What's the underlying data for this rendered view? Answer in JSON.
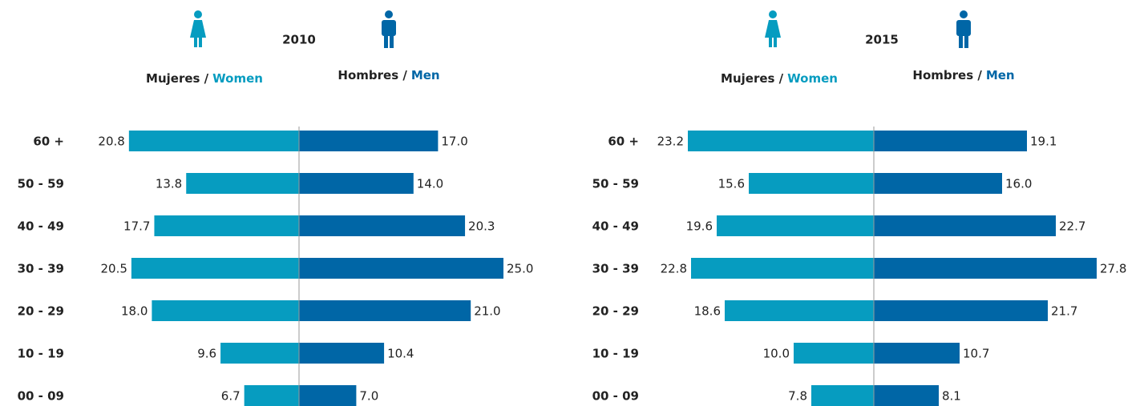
{
  "chart_data": [
    {
      "type": "pyramid",
      "title": "2010",
      "categories": [
        "60 +",
        "50 - 59",
        "40 - 49",
        "30 - 39",
        "20 - 29",
        "10 - 19",
        "00 - 09"
      ],
      "series": [
        {
          "label": "Mujeres /",
          "name": "Women",
          "color": "#069cc0",
          "values": [
            20.8,
            13.8,
            17.7,
            20.5,
            18.0,
            9.6,
            6.7
          ],
          "value_labels": [
            "20.8",
            "13.8",
            "17.7",
            "20.5",
            "18.0",
            "9.6",
            "6.7"
          ]
        },
        {
          "label": "Hombres /",
          "name": "Men",
          "color": "#0066a6",
          "values": [
            17.0,
            14.0,
            20.3,
            25.0,
            21.0,
            10.4,
            7.0
          ],
          "value_labels": [
            "17.0",
            "14.0",
            "20.3",
            "25.0",
            "21.0",
            "10.4",
            "7.0"
          ]
        }
      ]
    },
    {
      "type": "pyramid",
      "title": "2015",
      "categories": [
        "60 +",
        "50 - 59",
        "40 - 49",
        "30 - 39",
        "20 - 29",
        "10 - 19",
        "00 - 09"
      ],
      "series": [
        {
          "label": "Mujeres /",
          "name": "Women",
          "color": "#069cc0",
          "values": [
            23.2,
            15.6,
            19.6,
            22.8,
            18.6,
            10.0,
            7.8
          ],
          "value_labels": [
            "23.2",
            "15.6",
            "19.6",
            "22.8",
            "18.6",
            "10.0",
            "7.8"
          ]
        },
        {
          "label": "Hombres /",
          "name": "Men",
          "color": "#0066a6",
          "values": [
            19.1,
            16.0,
            22.7,
            27.8,
            21.7,
            10.7,
            8.1
          ],
          "value_labels": [
            "19.1",
            "16.0",
            "22.7",
            "27.8",
            "21.7",
            "10.7",
            "8.1"
          ]
        }
      ]
    }
  ]
}
